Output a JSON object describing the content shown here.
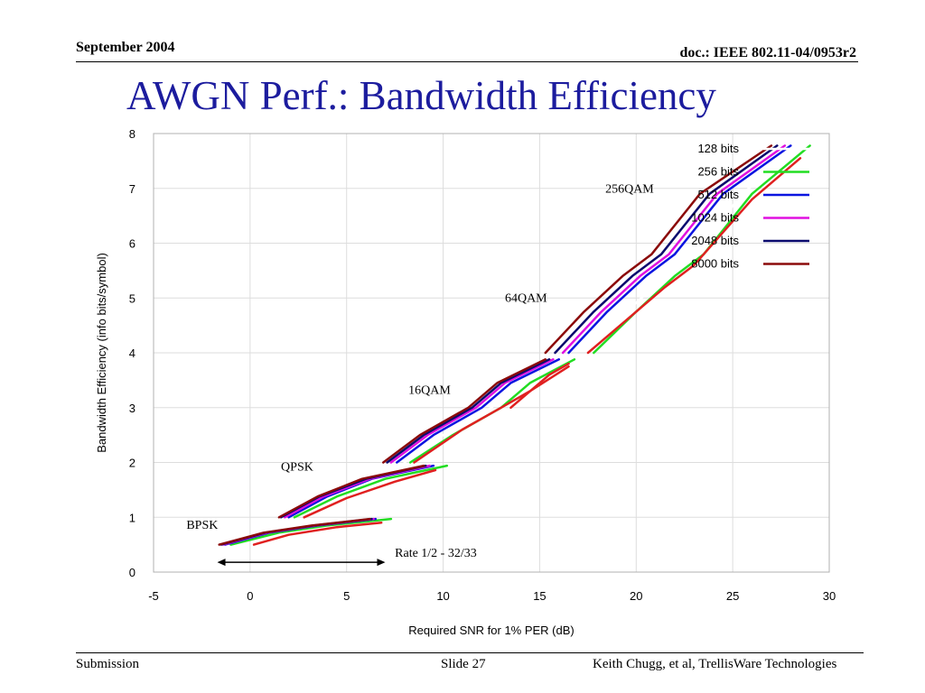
{
  "header": {
    "date": "September 2004",
    "doc": "doc.: IEEE 802.11-04/0953r2"
  },
  "slide_title": "AWGN Perf.: Bandwidth Efficiency",
  "footer": {
    "left": "Submission",
    "center": "Slide 27",
    "right": "Keith Chugg, et al, TrellisWare Technologies"
  },
  "chart_data": {
    "type": "line",
    "title": "",
    "xlabel": "Required SNR for 1% PER (dB)",
    "ylabel": "Bandwidth Efficiency (info bits/symbol)",
    "xlim": [
      -5,
      30
    ],
    "ylim": [
      0,
      8
    ],
    "xticks": [
      -5,
      0,
      5,
      10,
      15,
      20,
      25,
      30
    ],
    "yticks": [
      0,
      1,
      2,
      3,
      4,
      5,
      6,
      7,
      8
    ],
    "xtick_labels": [
      "-5",
      "0",
      "5",
      "10",
      "15",
      "20",
      "25",
      "30"
    ],
    "ytick_labels": [
      "0",
      "1",
      "2",
      "3",
      "4",
      "5",
      "6",
      "7",
      "8"
    ],
    "grid": true,
    "legend_position": "top-right",
    "series": [
      {
        "name": "128 bits",
        "color": "#ffffff",
        "segments": [
          [
            [
              -1.2,
              0.5
            ],
            [
              1.5,
              0.72
            ],
            [
              4,
              0.85
            ],
            [
              7,
              0.97
            ]
          ],
          [
            [
              2,
              1.0
            ],
            [
              4,
              1.38
            ],
            [
              6.5,
              1.7
            ],
            [
              9.8,
              1.94
            ]
          ],
          [
            [
              8,
              2.0
            ],
            [
              10,
              2.5
            ],
            [
              12.5,
              3.0
            ],
            [
              14,
              3.45
            ],
            [
              16.5,
              3.88
            ]
          ],
          [
            [
              17.5,
              4.0
            ],
            [
              19.5,
              4.75
            ],
            [
              21.5,
              5.4
            ],
            [
              23,
              5.8
            ],
            [
              25.5,
              6.9
            ],
            [
              28.5,
              7.78
            ]
          ]
        ]
      },
      {
        "name": "256 bits",
        "color": "#22dd22",
        "segments": [
          [
            [
              -1.0,
              0.5
            ],
            [
              1.5,
              0.72
            ],
            [
              4,
              0.85
            ],
            [
              7.3,
              0.97
            ]
          ],
          [
            [
              2.3,
              1.0
            ],
            [
              4.5,
              1.38
            ],
            [
              7,
              1.7
            ],
            [
              10.2,
              1.94
            ]
          ],
          [
            [
              8.3,
              2.0
            ],
            [
              10.5,
              2.5
            ],
            [
              13,
              3.0
            ],
            [
              14.5,
              3.45
            ],
            [
              16.8,
              3.88
            ]
          ],
          [
            [
              17.8,
              4.0
            ],
            [
              20,
              4.75
            ],
            [
              22,
              5.4
            ],
            [
              23.5,
              5.8
            ],
            [
              26,
              6.9
            ],
            [
              29,
              7.78
            ]
          ]
        ]
      },
      {
        "name": "512 bits",
        "color": "#0a14e0",
        "segments": [
          [
            [
              -1.3,
              0.5
            ],
            [
              1,
              0.72
            ],
            [
              3.5,
              0.85
            ],
            [
              6.5,
              0.97
            ]
          ],
          [
            [
              2,
              1.0
            ],
            [
              4,
              1.38
            ],
            [
              6.3,
              1.7
            ],
            [
              9.5,
              1.94
            ]
          ],
          [
            [
              7.6,
              2.0
            ],
            [
              9.5,
              2.5
            ],
            [
              12,
              3.0
            ],
            [
              13.5,
              3.45
            ],
            [
              16,
              3.88
            ]
          ],
          [
            [
              16.5,
              4.0
            ],
            [
              18.5,
              4.75
            ],
            [
              20.5,
              5.4
            ],
            [
              22,
              5.8
            ],
            [
              24.5,
              6.9
            ],
            [
              28,
              7.78
            ]
          ]
        ]
      },
      {
        "name": "1024 bits",
        "color": "#e010e0",
        "segments": [
          [
            [
              -1.4,
              0.5
            ],
            [
              0.9,
              0.72
            ],
            [
              3.4,
              0.85
            ],
            [
              6.4,
              0.97
            ]
          ],
          [
            [
              1.8,
              1.0
            ],
            [
              3.8,
              1.38
            ],
            [
              6.2,
              1.7
            ],
            [
              9.3,
              1.94
            ]
          ],
          [
            [
              7.3,
              2.0
            ],
            [
              9.2,
              2.5
            ],
            [
              11.7,
              3.0
            ],
            [
              13.2,
              3.45
            ],
            [
              15.7,
              3.88
            ]
          ],
          [
            [
              16.2,
              4.0
            ],
            [
              18.2,
              4.75
            ],
            [
              20.2,
              5.4
            ],
            [
              21.7,
              5.8
            ],
            [
              24.2,
              6.9
            ],
            [
              27.7,
              7.78
            ]
          ]
        ]
      },
      {
        "name": "2048 bits",
        "color": "#0a0a6e",
        "segments": [
          [
            [
              -1.5,
              0.5
            ],
            [
              0.8,
              0.72
            ],
            [
              3.3,
              0.85
            ],
            [
              6.3,
              0.97
            ]
          ],
          [
            [
              1.6,
              1.0
            ],
            [
              3.6,
              1.38
            ],
            [
              6,
              1.7
            ],
            [
              9.1,
              1.94
            ]
          ],
          [
            [
              7.1,
              2.0
            ],
            [
              9,
              2.5
            ],
            [
              11.5,
              3.0
            ],
            [
              13,
              3.45
            ],
            [
              15.5,
              3.88
            ]
          ],
          [
            [
              15.8,
              4.0
            ],
            [
              17.8,
              4.75
            ],
            [
              19.8,
              5.4
            ],
            [
              21.3,
              5.8
            ],
            [
              23.8,
              6.9
            ],
            [
              27.3,
              7.78
            ]
          ]
        ]
      },
      {
        "name": "8000 bits",
        "color": "#8b0a0a",
        "segments": [
          [
            [
              -1.6,
              0.5
            ],
            [
              0.7,
              0.72
            ],
            [
              3.2,
              0.85
            ],
            [
              6.2,
              0.97
            ]
          ],
          [
            [
              1.5,
              1.0
            ],
            [
              3.5,
              1.38
            ],
            [
              5.8,
              1.7
            ],
            [
              9,
              1.94
            ]
          ],
          [
            [
              6.9,
              2.0
            ],
            [
              8.8,
              2.5
            ],
            [
              11.3,
              3.0
            ],
            [
              12.8,
              3.45
            ],
            [
              15.3,
              3.88
            ]
          ],
          [
            [
              15.3,
              4.0
            ],
            [
              17.3,
              4.75
            ],
            [
              19.3,
              5.4
            ],
            [
              20.8,
              5.8
            ],
            [
              23.3,
              6.9
            ],
            [
              27,
              7.78
            ]
          ]
        ]
      },
      {
        "name": "",
        "color": "#e02020",
        "segments": [
          [
            [
              0.2,
              0.5
            ],
            [
              2,
              0.68
            ],
            [
              4.5,
              0.82
            ],
            [
              6.8,
              0.9
            ]
          ],
          [
            [
              2.8,
              1.0
            ],
            [
              5,
              1.35
            ],
            [
              7.5,
              1.65
            ],
            [
              9.6,
              1.86
            ]
          ],
          [
            [
              8.5,
              2.0
            ],
            [
              11,
              2.6
            ],
            [
              13,
              3.0
            ],
            [
              14.5,
              3.3
            ],
            [
              16.5,
              3.75
            ]
          ],
          [
            [
              13.5,
              3.0
            ],
            [
              15.5,
              3.6
            ],
            [
              16.5,
              3.8
            ]
          ],
          [
            [
              17.5,
              4.0
            ],
            [
              19.5,
              4.6
            ],
            [
              21.5,
              5.2
            ],
            [
              23,
              5.6
            ],
            [
              26,
              6.8
            ],
            [
              28.5,
              7.55
            ]
          ]
        ]
      }
    ],
    "annotations": [
      {
        "text": "BPSK",
        "x": -3.3,
        "y": 0.79
      },
      {
        "text": "QPSK",
        "x": 1.6,
        "y": 1.85
      },
      {
        "text": "16QAM",
        "x": 8.2,
        "y": 3.25
      },
      {
        "text": "64QAM",
        "x": 13.2,
        "y": 4.93
      },
      {
        "text": "256QAM",
        "x": 18.4,
        "y": 6.92
      },
      {
        "text": "Rate 1/2 - 32/33",
        "x": 7.5,
        "y": 0.28
      }
    ],
    "rate_arrow": {
      "x_start": -1.7,
      "x_end": 7.0,
      "y": 0.18
    }
  }
}
